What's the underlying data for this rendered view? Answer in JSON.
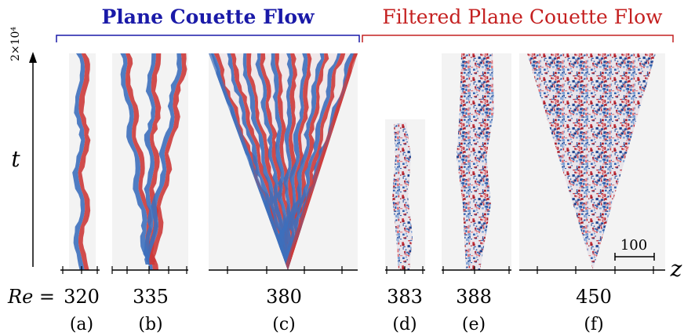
{
  "header": {
    "left_title": "Plane Couette Flow",
    "right_title": "Filtered Plane Couette Flow"
  },
  "axes": {
    "t_scale": "2×10⁴",
    "t_label": "t",
    "z_label": "z",
    "re_label": "Re =",
    "scale_bar": "100"
  },
  "panels": [
    {
      "re": "320",
      "label": "(a)"
    },
    {
      "re": "335",
      "label": "(b)"
    },
    {
      "re": "380",
      "label": "(c)"
    },
    {
      "re": "383",
      "label": "(d)"
    },
    {
      "re": "388",
      "label": "(e)"
    },
    {
      "re": "450",
      "label": "(f)"
    }
  ]
}
